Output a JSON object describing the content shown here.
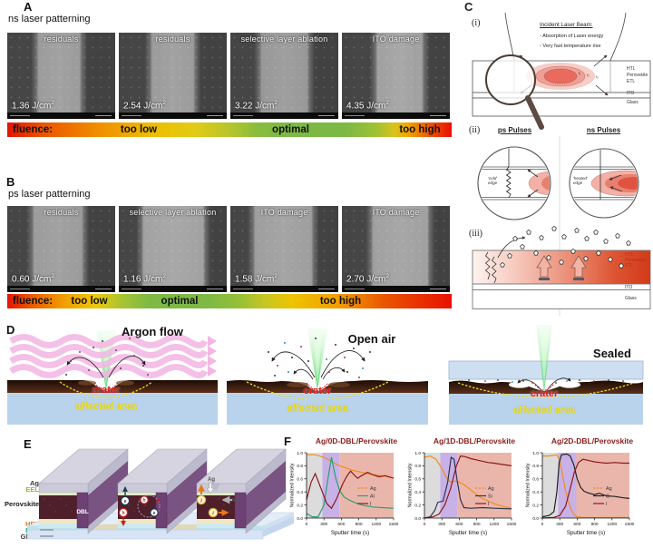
{
  "figure": {
    "units": {
      "jcm": "J/cm",
      "sup": "2"
    },
    "A": {
      "label": "A",
      "title": "ns laser patterning",
      "images": [
        {
          "caption": "residuals",
          "fluence": "1.36"
        },
        {
          "caption": "residuals",
          "fluence": "2.54"
        },
        {
          "caption": "selective layer ablation",
          "fluence": "3.22"
        },
        {
          "caption": "ITO damage",
          "fluence": "4.35"
        }
      ],
      "bar": {
        "name": "fluence:",
        "low": "too low",
        "optimal": "optimal",
        "high": "too  high"
      }
    },
    "B": {
      "label": "B",
      "title": "ps laser patterning",
      "images": [
        {
          "caption": "residuals",
          "fluence": "0.60"
        },
        {
          "caption": "selective layer ablation",
          "fluence": "1.16"
        },
        {
          "caption": "ITO damage",
          "fluence": "1.58"
        },
        {
          "caption": "ITO damage",
          "fluence": "2.70"
        }
      ],
      "bar": {
        "name": "fluence:",
        "low": "too low",
        "optimal": "optimal",
        "high": "too  high"
      }
    },
    "C": {
      "label": "C",
      "i": {
        "tag": "(i)",
        "heading": "Incident Laser Beam:",
        "bullet1": "- Absorption of Laser energy",
        "bullet2": "- Very fast temperature  rise",
        "htl": "HTL",
        "perovskite": "Perovskite",
        "etl": "ETL",
        "ito": "ITO",
        "glass": "Glass",
        "t1": "t₁",
        "t2": "t₂",
        "t3": "t₃"
      },
      "ii": {
        "tag": "(ii)",
        "ps": "ps Pulses",
        "ns": "ns Pulses",
        "cold": "'cold'\nedge",
        "heated": "'heated'\nedge"
      },
      "iii": {
        "tag": "(iii)",
        "htl": "HTL",
        "perovskite": "Perovskite",
        "etl": "ETL",
        "ito": "ITO",
        "glass": "Glass"
      }
    },
    "D": {
      "label": "D",
      "scenes": [
        {
          "title": "Argon flow",
          "crater": "crater",
          "area": "affected area"
        },
        {
          "title": "Open air",
          "crater": "crater",
          "area": "affected area"
        },
        {
          "title": "Sealed",
          "crater": "crater",
          "area": "affected area"
        }
      ]
    },
    "E": {
      "label": "E",
      "dbl": "DBL",
      "e": "e",
      "h": "h",
      "e2": "e",
      "h2": "h",
      "ion1": "I",
      "ion2": "I",
      "ag1": "Ag",
      "ag2": "Ag",
      "layers": [
        {
          "text": "Ag",
          "color": "#3a3a3a"
        },
        {
          "text": "EEL",
          "color": "#9fae3c"
        },
        {
          "text": "Perovskite",
          "color": "#1a1a1a"
        },
        {
          "text": "HEL",
          "color": "#e0761c"
        },
        {
          "text": "FTO",
          "color": "#1d9e8f"
        },
        {
          "text": "Glass",
          "color": "#3a3a3a"
        }
      ]
    },
    "F": {
      "label": "F"
    }
  },
  "chart_data": [
    {
      "type": "line",
      "title": "Ag/0D-DBL/Perovskite",
      "xlabel": "Sputter time (s)",
      "ylabel": "Normalized Intensity",
      "xlim": [
        0,
        1500
      ],
      "ylim": [
        0,
        1
      ],
      "xticks": [
        0,
        300,
        600,
        900,
        1200,
        1500
      ],
      "yticks": [
        0,
        0.2,
        0.4,
        0.6,
        0.8,
        1
      ],
      "legend_position": "right",
      "regions": [
        {
          "x0": 0,
          "x1": 270,
          "color": "#dcdcdc"
        },
        {
          "x0": 270,
          "x1": 565,
          "color": "#c8b1e6"
        },
        {
          "x0": 565,
          "x1": 1500,
          "color": "#eab6ac"
        }
      ],
      "series": [
        {
          "name": "Ag",
          "color": "#f28c1e",
          "dash": true,
          "points": [
            [
              0,
              0.97
            ],
            [
              150,
              0.97
            ],
            [
              300,
              0.93
            ],
            [
              400,
              0.88
            ],
            [
              500,
              0.83
            ],
            [
              600,
              0.79
            ],
            [
              700,
              0.76
            ],
            [
              800,
              0.73
            ],
            [
              900,
              0.71
            ],
            [
              1000,
              0.69
            ],
            [
              1100,
              0.67
            ],
            [
              1200,
              0.66
            ],
            [
              1350,
              0.64
            ],
            [
              1500,
              0.61
            ]
          ]
        },
        {
          "name": "Al",
          "color": "#2f9e74",
          "dash": false,
          "points": [
            [
              0,
              0.07
            ],
            [
              100,
              0.02
            ],
            [
              200,
              0.02
            ],
            [
              300,
              0.2
            ],
            [
              360,
              0.55
            ],
            [
              430,
              0.93
            ],
            [
              500,
              0.62
            ],
            [
              570,
              0.42
            ],
            [
              650,
              0.32
            ],
            [
              750,
              0.27
            ],
            [
              850,
              0.23
            ],
            [
              1000,
              0.19
            ],
            [
              1150,
              0.17
            ],
            [
              1300,
              0.16
            ],
            [
              1500,
              0.15
            ]
          ]
        },
        {
          "name": "I",
          "color": "#8c1a1a",
          "dash": false,
          "points": [
            [
              0,
              0.28
            ],
            [
              80,
              0.55
            ],
            [
              150,
              0.68
            ],
            [
              250,
              0.45
            ],
            [
              350,
              0.22
            ],
            [
              430,
              0.15
            ],
            [
              520,
              0.3
            ],
            [
              620,
              0.52
            ],
            [
              700,
              0.65
            ],
            [
              760,
              0.72
            ],
            [
              820,
              0.66
            ],
            [
              880,
              0.61
            ],
            [
              950,
              0.65
            ],
            [
              1050,
              0.7
            ],
            [
              1150,
              0.66
            ],
            [
              1250,
              0.63
            ],
            [
              1350,
              0.65
            ],
            [
              1500,
              0.61
            ]
          ]
        }
      ]
    },
    {
      "type": "line",
      "title": "Ag/1D-DBL/Perovskite",
      "xlabel": "Sputter time (s)",
      "ylabel": "Normalized Intensity",
      "xlim": [
        0,
        1500
      ],
      "ylim": [
        0,
        1
      ],
      "xticks": [
        0,
        300,
        600,
        900,
        1200,
        1500
      ],
      "yticks": [
        0,
        0.2,
        0.4,
        0.6,
        0.8,
        1
      ],
      "legend_position": "right",
      "regions": [
        {
          "x0": 0,
          "x1": 270,
          "color": "#dcdcdc"
        },
        {
          "x0": 270,
          "x1": 575,
          "color": "#c8b1e6"
        },
        {
          "x0": 575,
          "x1": 1500,
          "color": "#eab6ac"
        }
      ],
      "series": [
        {
          "name": "Ag",
          "color": "#f28c1e",
          "dash": true,
          "points": [
            [
              0,
              0.93
            ],
            [
              100,
              0.95
            ],
            [
              200,
              0.9
            ],
            [
              300,
              0.76
            ],
            [
              380,
              0.62
            ],
            [
              450,
              0.55
            ],
            [
              520,
              0.57
            ],
            [
              600,
              0.55
            ],
            [
              700,
              0.5
            ],
            [
              800,
              0.43
            ],
            [
              900,
              0.36
            ],
            [
              1000,
              0.3
            ],
            [
              1100,
              0.26
            ],
            [
              1200,
              0.22
            ],
            [
              1350,
              0.18
            ],
            [
              1500,
              0.15
            ]
          ]
        },
        {
          "name": "Si",
          "color": "#30344f",
          "dash": false,
          "points": [
            [
              0,
              0.0
            ],
            [
              100,
              0.02
            ],
            [
              180,
              0.12
            ],
            [
              230,
              0.24
            ],
            [
              320,
              0.26
            ],
            [
              400,
              0.55
            ],
            [
              460,
              0.93
            ],
            [
              510,
              0.9
            ],
            [
              560,
              0.6
            ],
            [
              620,
              0.28
            ],
            [
              680,
              0.16
            ],
            [
              800,
              0.15
            ],
            [
              1000,
              0.16
            ],
            [
              1200,
              0.15
            ],
            [
              1500,
              0.14
            ]
          ]
        },
        {
          "name": "I",
          "color": "#8c1a1a",
          "dash": false,
          "points": [
            [
              0,
              0.0
            ],
            [
              150,
              0.02
            ],
            [
              250,
              0.06
            ],
            [
              350,
              0.2
            ],
            [
              450,
              0.45
            ],
            [
              550,
              0.8
            ],
            [
              620,
              0.95
            ],
            [
              700,
              0.94
            ],
            [
              800,
              0.91
            ],
            [
              900,
              0.89
            ],
            [
              1000,
              0.87
            ],
            [
              1100,
              0.85
            ],
            [
              1200,
              0.84
            ],
            [
              1350,
              0.82
            ],
            [
              1500,
              0.8
            ]
          ]
        }
      ]
    },
    {
      "type": "line",
      "title": "Ag/2D-DBL/Perovskite",
      "xlabel": "Sputter time (s)",
      "ylabel": "Normalized Intensity",
      "xlim": [
        0,
        1500
      ],
      "ylim": [
        0,
        1
      ],
      "xticks": [
        0,
        300,
        600,
        900,
        1200,
        1500
      ],
      "yticks": [
        0,
        0.2,
        0.4,
        0.6,
        0.8,
        1
      ],
      "legend_position": "right",
      "regions": [
        {
          "x0": 0,
          "x1": 270,
          "color": "#dcdcdc"
        },
        {
          "x0": 270,
          "x1": 585,
          "color": "#c8b1e6"
        },
        {
          "x0": 585,
          "x1": 1500,
          "color": "#eab6ac"
        }
      ],
      "series": [
        {
          "name": "Ag",
          "color": "#f28c1e",
          "dash": true,
          "points": [
            [
              0,
              0.95
            ],
            [
              100,
              0.95
            ],
            [
              200,
              0.96
            ],
            [
              250,
              0.97
            ],
            [
              300,
              0.88
            ],
            [
              350,
              0.65
            ],
            [
              400,
              0.42
            ],
            [
              450,
              0.25
            ],
            [
              500,
              0.12
            ],
            [
              550,
              0.05
            ],
            [
              600,
              0.02
            ],
            [
              700,
              0.01
            ],
            [
              900,
              0.01
            ],
            [
              1200,
              0.01
            ],
            [
              1500,
              0.01
            ]
          ]
        },
        {
          "name": "C",
          "color": "#222222",
          "dash": false,
          "points": [
            [
              0,
              0.02
            ],
            [
              120,
              0.04
            ],
            [
              200,
              0.1
            ],
            [
              250,
              0.4
            ],
            [
              290,
              0.85
            ],
            [
              330,
              0.97
            ],
            [
              420,
              0.98
            ],
            [
              480,
              0.95
            ],
            [
              540,
              0.82
            ],
            [
              600,
              0.6
            ],
            [
              660,
              0.47
            ],
            [
              720,
              0.41
            ],
            [
              800,
              0.38
            ],
            [
              900,
              0.36
            ],
            [
              980,
              0.38
            ],
            [
              1100,
              0.34
            ],
            [
              1250,
              0.33
            ],
            [
              1400,
              0.31
            ],
            [
              1500,
              0.3
            ]
          ]
        },
        {
          "name": "I",
          "color": "#8c1a1a",
          "dash": false,
          "points": [
            [
              0,
              0.0
            ],
            [
              200,
              0.01
            ],
            [
              300,
              0.04
            ],
            [
              400,
              0.18
            ],
            [
              480,
              0.45
            ],
            [
              550,
              0.7
            ],
            [
              620,
              0.85
            ],
            [
              700,
              0.9
            ],
            [
              800,
              0.88
            ],
            [
              900,
              0.86
            ],
            [
              1000,
              0.85
            ],
            [
              1100,
              0.84
            ],
            [
              1250,
              0.85
            ],
            [
              1400,
              0.84
            ],
            [
              1500,
              0.84
            ]
          ]
        }
      ]
    }
  ]
}
